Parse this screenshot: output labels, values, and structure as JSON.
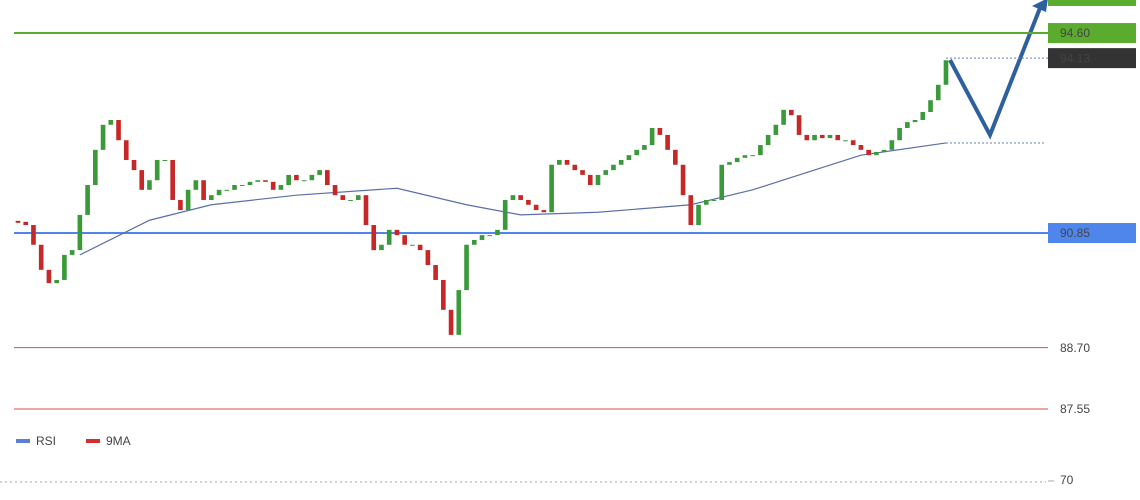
{
  "chart_data": {
    "type": "candlestick",
    "up_color": "#3a9a3a",
    "down_color": "#c62828",
    "ylim": [
      87.25,
      95.22
    ],
    "close": [
      91.06,
      91.0,
      90.63,
      90.16,
      89.91,
      89.97,
      90.44,
      90.53,
      91.19,
      91.75,
      92.41,
      92.88,
      92.97,
      92.59,
      92.22,
      92.03,
      91.66,
      91.84,
      92.22,
      92.22,
      91.47,
      91.28,
      91.66,
      91.84,
      91.47,
      91.56,
      91.66,
      91.66,
      91.75,
      91.75,
      91.81,
      91.84,
      91.81,
      91.66,
      91.75,
      91.94,
      91.84,
      91.84,
      91.94,
      92.03,
      91.75,
      91.56,
      91.47,
      91.47,
      91.56,
      91.0,
      90.53,
      90.63,
      90.91,
      90.81,
      90.63,
      90.63,
      90.53,
      90.25,
      89.97,
      89.41,
      88.94,
      89.78,
      90.63,
      90.72,
      90.81,
      90.81,
      90.91,
      91.47,
      91.56,
      91.47,
      91.38,
      91.28,
      91.24,
      92.13,
      92.22,
      92.13,
      92.03,
      91.94,
      91.75,
      91.94,
      92.03,
      92.13,
      92.22,
      92.31,
      92.41,
      92.5,
      92.82,
      92.69,
      92.41,
      92.13,
      91.56,
      91.0,
      91.38,
      91.47,
      91.47,
      92.13,
      92.18,
      92.26,
      92.31,
      92.31,
      92.5,
      92.69,
      92.88,
      93.16,
      93.06,
      92.69,
      92.59,
      92.69,
      92.63,
      92.69,
      92.59,
      92.59,
      92.5,
      92.41,
      92.31,
      92.37,
      92.41,
      92.59,
      92.82,
      92.93,
      92.97,
      93.12,
      93.34,
      93.63,
      94.09
    ],
    "moving_average": {
      "color": "#5b6fa8",
      "index": [
        8,
        17,
        25,
        36,
        49,
        58,
        65,
        75,
        87,
        95,
        101,
        109,
        120
      ],
      "values": [
        90.44,
        91.09,
        91.38,
        91.56,
        91.69,
        91.38,
        91.19,
        91.24,
        91.38,
        91.66,
        91.94,
        92.31,
        92.54
      ]
    },
    "levels": [
      {
        "value": 94.6,
        "label": "94.60",
        "color": "#5aab2e",
        "style": "solid",
        "box": true
      },
      {
        "value": 94.13,
        "label": "94.13",
        "color": "#333333",
        "style": "dotted",
        "box": true
      },
      {
        "value": 90.85,
        "label": "90.85",
        "color": "#4f86ec",
        "style": "solid",
        "box": true
      },
      {
        "value": 88.7,
        "label": "88.70",
        "color": "#e04848",
        "style": "thin",
        "box": false
      },
      {
        "value": 87.55,
        "label": "87.55",
        "color": "#e04848",
        "style": "thin",
        "box": false
      }
    ],
    "rsi": {
      "series": [
        {
          "name": "RSI",
          "color": "#5b7fd6"
        },
        {
          "name": "9MA",
          "color": "#d32f2f"
        }
      ],
      "yticks": [
        70
      ]
    }
  }
}
